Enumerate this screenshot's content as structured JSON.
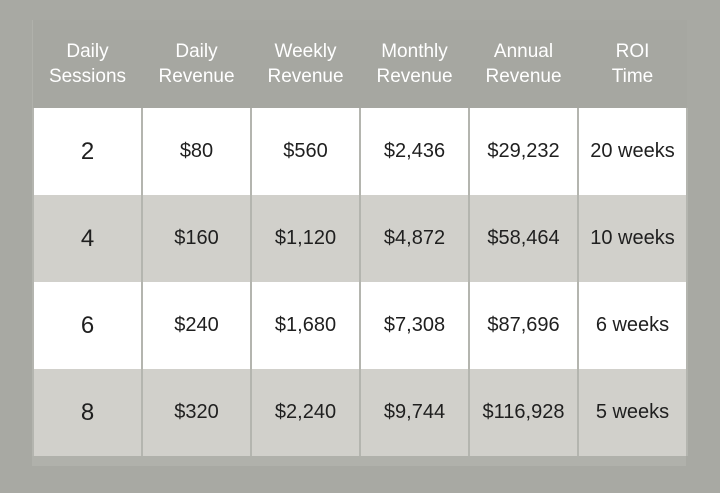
{
  "chart_data": {
    "type": "table",
    "columns": [
      [
        "Daily",
        "Sessions"
      ],
      [
        "Daily",
        "Revenue"
      ],
      [
        "Weekly",
        "Revenue"
      ],
      [
        "Monthly",
        "Revenue"
      ],
      [
        "Annual",
        "Revenue"
      ],
      [
        "ROI",
        "Time"
      ]
    ],
    "rows": [
      [
        "2",
        "$80",
        "$560",
        "$2,436",
        "$29,232",
        "20 weeks"
      ],
      [
        "4",
        "$160",
        "$1,120",
        "$4,872",
        "$58,464",
        "10 weeks"
      ],
      [
        "6",
        "$240",
        "$1,680",
        "$7,308",
        "$87,696",
        "6 weeks"
      ],
      [
        "8",
        "$320",
        "$2,240",
        "$9,744",
        "$116,928",
        "5 weeks"
      ]
    ]
  },
  "colors": {
    "background": "#a8a9a3",
    "header_bg": "#a6a7a1",
    "row_light": "#ffffff",
    "row_dark": "#d1d0cb",
    "text": "#1f1f1f",
    "header_text": "#ffffff"
  }
}
